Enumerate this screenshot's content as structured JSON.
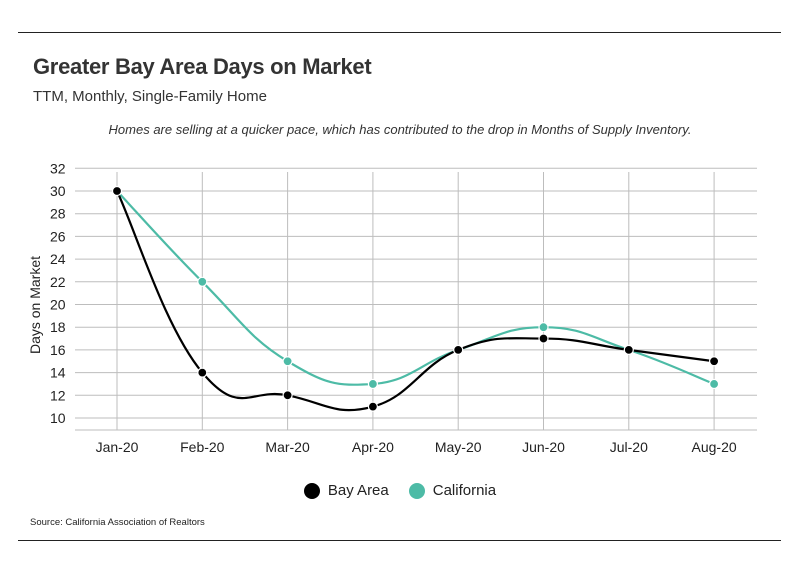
{
  "header": {
    "title": "Greater Bay Area Days on Market",
    "subtitle": "TTM, Monthly, Single-Family Home",
    "annotation": "Homes are selling at a quicker pace, which has contributed to the drop in Months of Supply Inventory."
  },
  "footer": {
    "source": "Source:  California Association of Realtors"
  },
  "colors": {
    "bay_area": "#000000",
    "california": "#4dbba6",
    "grid": "#bdbdbd"
  },
  "chart_data": {
    "type": "line",
    "title": "Greater Bay Area Days on Market",
    "subtitle": "TTM, Monthly, Single-Family Home",
    "xlabel": "",
    "ylabel": "Days on Market",
    "categories": [
      "Jan-20",
      "Feb-20",
      "Mar-20",
      "Apr-20",
      "May-20",
      "Jun-20",
      "Jul-20",
      "Aug-20"
    ],
    "yticks": [
      10,
      12,
      14,
      16,
      18,
      20,
      22,
      24,
      26,
      28,
      30,
      32
    ],
    "ylim": [
      9,
      32
    ],
    "grid": true,
    "legend_position": "bottom",
    "series": [
      {
        "name": "Bay Area",
        "color": "#000000",
        "values": [
          30,
          14,
          12,
          11,
          16,
          17,
          16,
          15
        ]
      },
      {
        "name": "California",
        "color": "#4dbba6",
        "values": [
          30,
          22,
          15,
          13,
          16,
          18,
          16,
          13
        ]
      }
    ]
  }
}
